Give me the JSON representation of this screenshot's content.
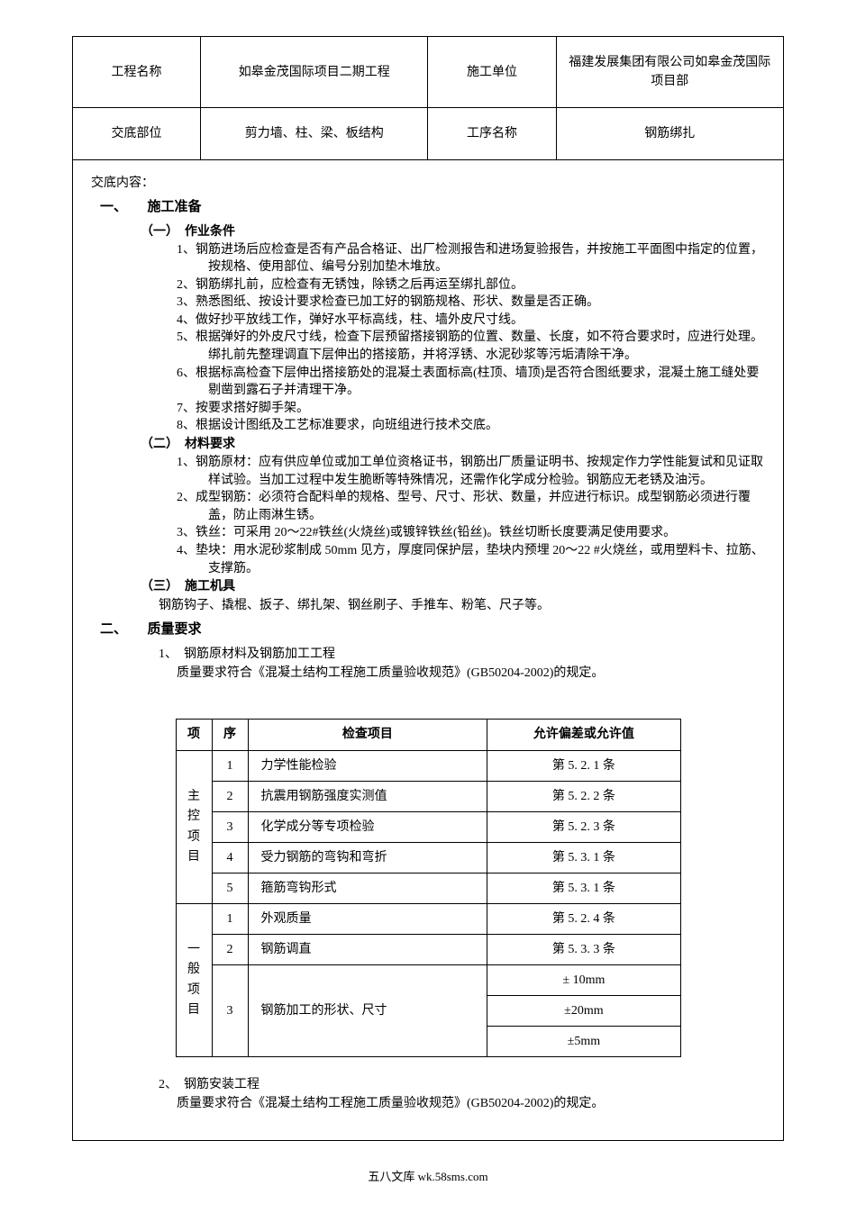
{
  "header": {
    "project_name_label": "工程名称",
    "project_name_value": "如皋金茂国际项目二期工程",
    "construction_unit_label": "施工单位",
    "construction_unit_value": "福建发展集团有限公司如皋金茂国际项目部",
    "location_label": "交底部位",
    "location_value": "剪力墙、柱、梁、板结构",
    "process_label": "工序名称",
    "process_value": "钢筋绑扎"
  },
  "content": {
    "title": "交底内容：",
    "section1": {
      "heading": "一、　　施工准备",
      "sub1": {
        "heading": "（一）　作业条件",
        "items": [
          "1、钢筋进场后应检查是否有产品合格证、出厂检测报告和进场复验报告，并按施工平面图中指定的位置，按规格、使用部位、编号分别加垫木堆放。",
          "2、钢筋绑扎前，应检查有无锈蚀，除锈之后再运至绑扎部位。",
          "3、熟悉图纸、按设计要求检查已加工好的钢筋规格、形状、数量是否正确。",
          "4、做好抄平放线工作，弹好水平标高线，柱、墙外皮尺寸线。",
          "5、根据弹好的外皮尺寸线，检查下层预留搭接钢筋的位置、数量、长度，如不符合要求时，应进行处理。绑扎前先整理调直下层伸出的搭接筋，并将浮锈、水泥砂浆等污垢清除干净。",
          "6、根据标高检查下层伸出搭接筋处的混凝土表面标高(柱顶、墙顶)是否符合图纸要求，混凝土施工缝处要剔凿到露石子并清理干净。",
          "7、按要求搭好脚手架。",
          "8、根据设计图纸及工艺标准要求，向班组进行技术交底。"
        ]
      },
      "sub2": {
        "heading": "（二）　材料要求",
        "items": [
          "1、钢筋原材：应有供应单位或加工单位资格证书，钢筋出厂质量证明书、按规定作力学性能复试和见证取样试验。当加工过程中发生脆断等特殊情况，还需作化学成分检验。钢筋应无老锈及油污。",
          "2、成型钢筋：必须符合配料单的规格、型号、尺寸、形状、数量，并应进行标识。成型钢筋必须进行覆盖，防止雨淋生锈。",
          "3、铁丝：可采用 20～22#铁丝(火烧丝)或镀锌铁丝(铅丝)。铁丝切断长度要满足使用要求。",
          "4、垫块：用水泥砂浆制成 50mm 见方，厚度同保护层，垫块内预埋 20～22 #火烧丝，或用塑料卡、拉筋、支撑筋。"
        ]
      },
      "sub3": {
        "heading": "（三）　施工机具",
        "text": "钢筋钩子、撬棍、扳子、绑扎架、钢丝刷子、手推车、粉笔、尺子等。"
      }
    },
    "section2": {
      "heading": "二、　　质量要求",
      "item1_label": "1、　钢筋原材料及钢筋加工工程",
      "item1_text": "质量要求符合《混凝土结构工程施工质量验收规范》(GB50204-2002)的规定。",
      "item2_label": "2、　钢筋安装工程",
      "item2_text": "质量要求符合《混凝土结构工程施工质量验收规范》(GB50204-2002)的规定。"
    }
  },
  "quality_table": {
    "headers": {
      "category": "项",
      "seq": "序",
      "check_item": "检查项目",
      "tolerance": "允许偏差或允许值"
    },
    "main_category": "主控项目",
    "general_category": "一般项目",
    "rows_main": [
      {
        "seq": "1",
        "item": "力学性能检验",
        "tol": "第 5. 2. 1 条"
      },
      {
        "seq": "2",
        "item": "抗震用钢筋强度实测值",
        "tol": "第 5. 2. 2 条"
      },
      {
        "seq": "3",
        "item": "化学成分等专项检验",
        "tol": "第 5. 2. 3 条"
      },
      {
        "seq": "4",
        "item": "受力钢筋的弯钩和弯折",
        "tol": "第 5. 3. 1 条"
      },
      {
        "seq": "5",
        "item": "箍筋弯钩形式",
        "tol": "第 5. 3. 1 条"
      }
    ],
    "rows_general": [
      {
        "seq": "1",
        "item": "外观质量",
        "tol": "第 5. 2. 4 条"
      },
      {
        "seq": "2",
        "item": "钢筋调直",
        "tol": "第 5. 3. 3 条"
      }
    ],
    "processing_item": "钢筋加工的形状、尺寸",
    "processing_seq": "3",
    "processing_tols": [
      "± 10mm",
      "±20mm",
      "±5mm"
    ]
  },
  "footer": "五八文库 wk.58sms.com"
}
